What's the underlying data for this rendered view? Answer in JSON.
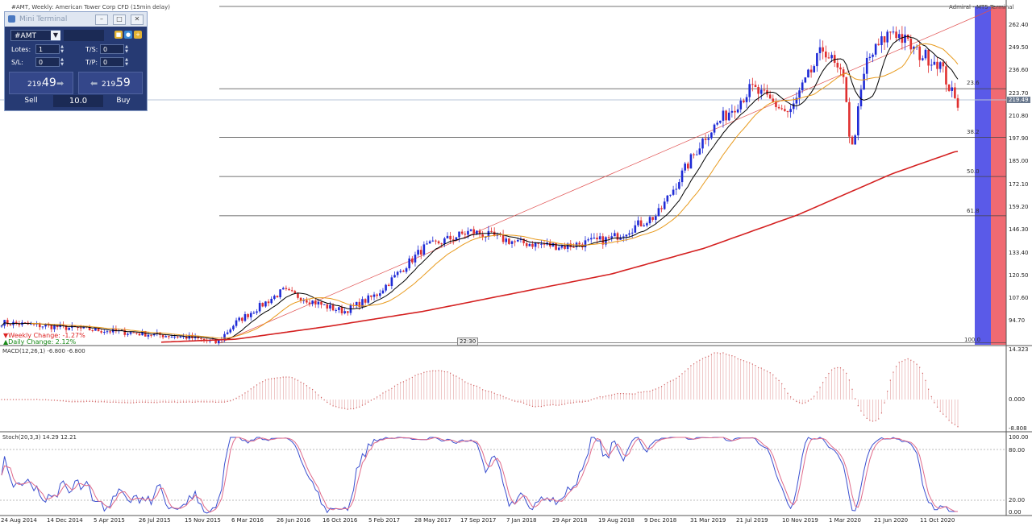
{
  "chart_header": {
    "title": "#AMT, Weekly: American Tower Corp CFD (15min delay)",
    "broker": "Admiral - MT5 Terminal"
  },
  "change": {
    "weekly": "Weekly Change: -1.27%",
    "daily": "Daily Change: 2.12%"
  },
  "cursor_time": "22:30",
  "mini_terminal": {
    "title": "Mini Terminal",
    "symbol": "#AMT",
    "lots_label": "Lotes:",
    "lots_value": "1",
    "ts_label": "T/S:",
    "ts_value": "0",
    "sl_label": "S/L:",
    "sl_value": "0",
    "tp_label": "T/P:",
    "tp_value": "0",
    "sell_price_small": "219.",
    "sell_price_big": "49",
    "buy_price_small": "219.",
    "buy_price_big": "59",
    "sell_label": "Sell",
    "buy_label": "Buy",
    "lot_size": "10.0"
  },
  "fib_levels": [
    "23.6",
    "38.2",
    "50.0",
    "61.8",
    "100.0"
  ],
  "current_price_label": "219.49",
  "price_axis": [
    "262.40",
    "249.50",
    "236.60",
    "223.70",
    "210.80",
    "197.90",
    "185.00",
    "172.10",
    "159.20",
    "146.30",
    "133.40",
    "120.50",
    "107.60",
    "94.70"
  ],
  "macd": {
    "label": "MACD(12,26,1) -6.800 -6.800",
    "axis": [
      "14.323",
      "0.000",
      "-8.808"
    ]
  },
  "stoch": {
    "label": "Stoch(20,3,3) 14.29 12.21",
    "axis": [
      "100.00",
      "80.00",
      "20.00",
      "0.00"
    ]
  },
  "date_axis": [
    "24 Aug 2014",
    "14 Dec 2014",
    "5 Apr 2015",
    "26 Jul 2015",
    "15 Nov 2015",
    "6 Mar 2016",
    "26 Jun 2016",
    "16 Oct 2016",
    "5 Feb 2017",
    "28 May 2017",
    "17 Sep 2017",
    "7 Jan 2018",
    "29 Apr 2018",
    "19 Aug 2018",
    "9 Dec 2018",
    "31 Mar 2019",
    "21 Jul 2019",
    "10 Nov 2019",
    "1 Mar 2020",
    "21 Jun 2020",
    "11 Oct 2020"
  ],
  "colors": {
    "bull": "#1f2bd6",
    "bear": "#e03030",
    "ma_fast": "#000000",
    "ma_mid": "#e89a1c",
    "ma_slow": "#d42020",
    "macd_bar": "#d06060",
    "stoch_main": "#3a4fd0",
    "stoch_signal": "#e06a8a",
    "blue_band": "#5a5ae8",
    "red_band": "#f06a72"
  },
  "chart_data": {
    "type": "candlestick",
    "title": "#AMT, Weekly: American Tower Corp CFD (15min delay)",
    "ylim": [
      88,
      270
    ],
    "price_anchors": [
      [
        "2014-08-24",
        100
      ],
      [
        "2014-12-14",
        98
      ],
      [
        "2015-04-05",
        96
      ],
      [
        "2015-07-26",
        94
      ],
      [
        "2015-11-15",
        92
      ],
      [
        "2016-01-20",
        89
      ],
      [
        "2016-03-06",
        100
      ],
      [
        "2016-06-26",
        117
      ],
      [
        "2016-10-16",
        108
      ],
      [
        "2016-11-20",
        106
      ],
      [
        "2017-02-05",
        115
      ],
      [
        "2017-05-28",
        140
      ],
      [
        "2017-09-17",
        149
      ],
      [
        "2018-01-07",
        143
      ],
      [
        "2018-04-29",
        141
      ],
      [
        "2018-08-19",
        145
      ],
      [
        "2018-12-09",
        158
      ],
      [
        "2019-03-31",
        200
      ],
      [
        "2019-07-21",
        226
      ],
      [
        "2019-10-20",
        212
      ],
      [
        "2019-11-10",
        222
      ],
      [
        "2020-01-10",
        248
      ],
      [
        "2020-03-01",
        228
      ],
      [
        "2020-03-15",
        190
      ],
      [
        "2020-04-20",
        240
      ],
      [
        "2020-06-21",
        258
      ],
      [
        "2020-08-20",
        245
      ],
      [
        "2020-10-11",
        240
      ],
      [
        "2020-11-20",
        218
      ]
    ],
    "sma_slow_anchors": [
      [
        "2015-04-05",
        88
      ],
      [
        "2016-03-06",
        91
      ],
      [
        "2016-10-16",
        98
      ],
      [
        "2017-05-28",
        106
      ],
      [
        "2018-01-07",
        116
      ],
      [
        "2018-08-19",
        126
      ],
      [
        "2019-03-31",
        140
      ],
      [
        "2019-11-10",
        158
      ],
      [
        "2020-06-21",
        180
      ],
      [
        "2020-11-20",
        192
      ]
    ],
    "fibonacci": {
      "low": 89,
      "high": 268,
      "levels": [
        23.6,
        38.2,
        50.0,
        61.8,
        100.0
      ]
    },
    "macd_last": -6.8,
    "stoch_last": [
      14.29,
      12.21
    ]
  }
}
